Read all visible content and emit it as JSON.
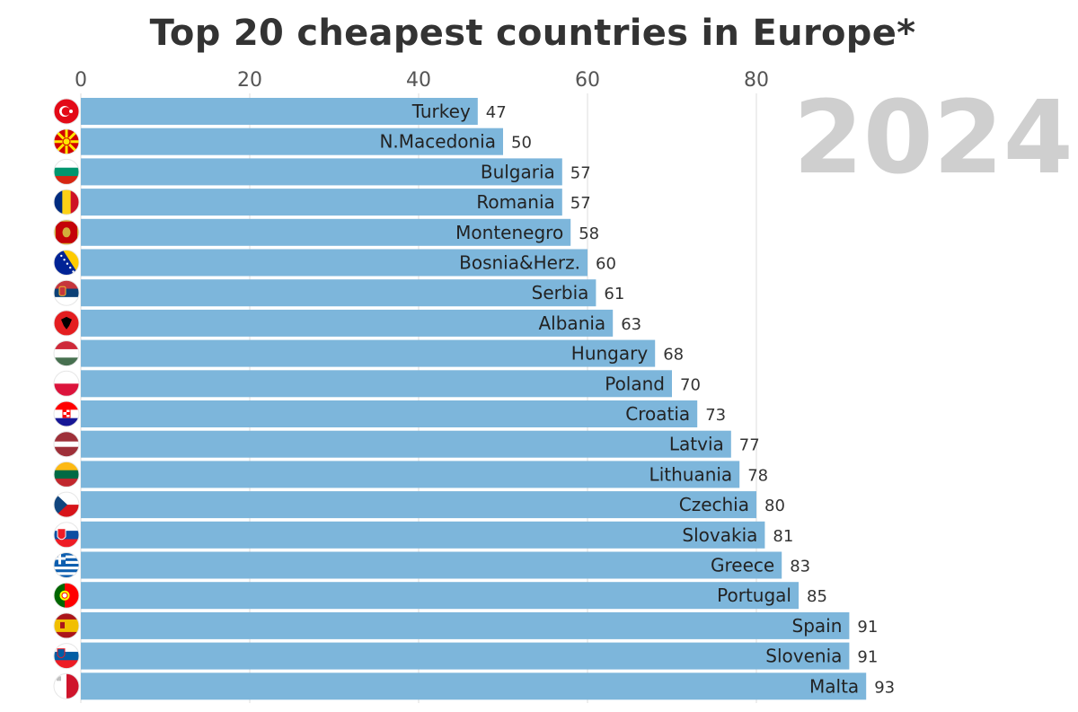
{
  "chart_data": {
    "type": "bar",
    "orientation": "horizontal",
    "title": "Top 20 cheapest countries in Europe*",
    "year": "2024",
    "xlabel": "",
    "ylabel": "",
    "xlim": [
      0,
      100
    ],
    "ticks": [
      0,
      20,
      40,
      60,
      80
    ],
    "grid": true,
    "bar_color": "#7db6db",
    "categories": [
      "Turkey",
      "N.Macedonia",
      "Bulgaria",
      "Romania",
      "Montenegro",
      "Bosnia&Herz.",
      "Serbia",
      "Albania",
      "Hungary",
      "Poland",
      "Croatia",
      "Latvia",
      "Lithuania",
      "Czechia",
      "Slovakia",
      "Greece",
      "Portugal",
      "Spain",
      "Slovenia",
      "Malta"
    ],
    "values": [
      47,
      50,
      57,
      57,
      58,
      60,
      61,
      63,
      68,
      70,
      73,
      77,
      78,
      80,
      81,
      83,
      85,
      91,
      91,
      93
    ],
    "flags": [
      "turkey-flag-icon",
      "north-macedonia-flag-icon",
      "bulgaria-flag-icon",
      "romania-flag-icon",
      "montenegro-flag-icon",
      "bosnia-flag-icon",
      "serbia-flag-icon",
      "albania-flag-icon",
      "hungary-flag-icon",
      "poland-flag-icon",
      "croatia-flag-icon",
      "latvia-flag-icon",
      "lithuania-flag-icon",
      "czechia-flag-icon",
      "slovakia-flag-icon",
      "greece-flag-icon",
      "portugal-flag-icon",
      "spain-flag-icon",
      "slovenia-flag-icon",
      "malta-flag-icon"
    ]
  }
}
